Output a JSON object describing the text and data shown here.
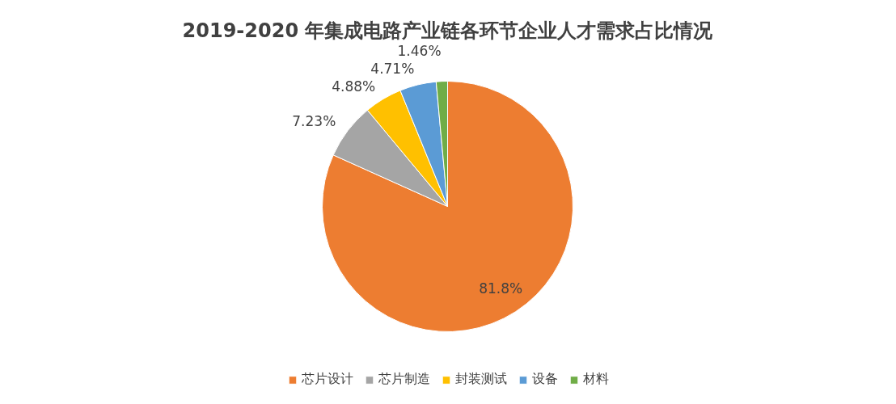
{
  "chart_data": {
    "type": "pie",
    "title": "2019-2020 年集成电路产业链各环节企业人才需求占比情况",
    "categories": [
      "芯片设计",
      "芯片制造",
      "封装测试",
      "设备",
      "材料"
    ],
    "values": [
      81.8,
      7.23,
      4.88,
      4.71,
      1.46
    ],
    "colors": [
      "#ed7d31",
      "#a5a5a5",
      "#ffc000",
      "#5b9bd5",
      "#70ad47"
    ],
    "value_labels": [
      "81.8%",
      "7.23%",
      "4.88%",
      "4.71%",
      "1.46%"
    ],
    "legend": "bottom"
  }
}
